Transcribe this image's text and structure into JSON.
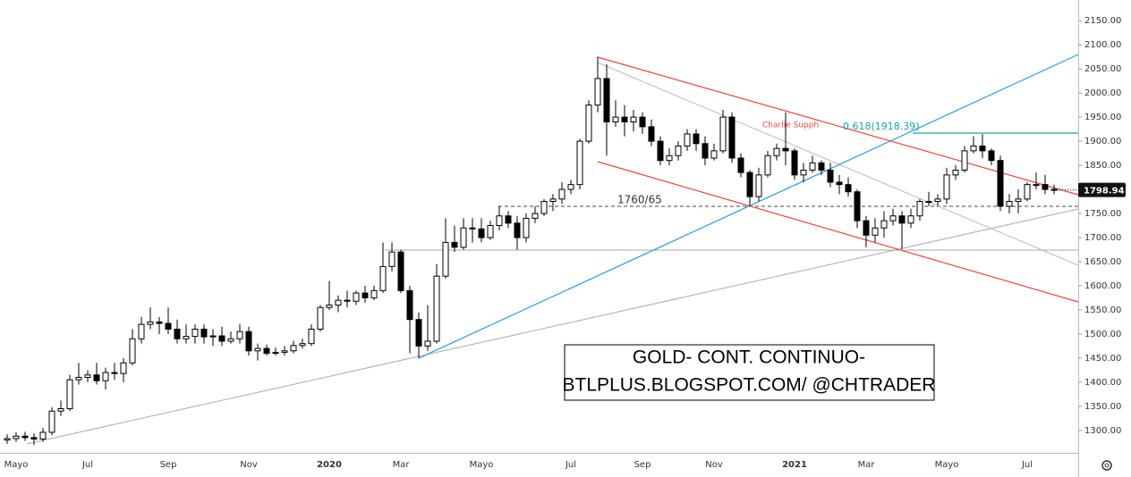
{
  "chart_data": {
    "type": "candlestick",
    "categories": [
      null,
      "Mayo",
      null,
      null,
      null,
      null,
      null,
      null,
      null,
      "Jul",
      null,
      null,
      null,
      null,
      null,
      null,
      null,
      null,
      "Sep",
      null,
      null,
      null,
      null,
      null,
      null,
      null,
      null,
      "Nov",
      null,
      null,
      null,
      null,
      null,
      null,
      null,
      null,
      "2020",
      null,
      null,
      null,
      null,
      null,
      null,
      null,
      "Mar",
      null,
      null,
      null,
      null,
      null,
      null,
      null,
      null,
      "Mayo",
      null,
      null,
      null,
      null,
      null,
      null,
      null,
      null,
      null,
      "Jul",
      null,
      null,
      null,
      null,
      null,
      null,
      null,
      "Sep",
      null,
      null,
      null,
      null,
      null,
      null,
      null,
      "Nov",
      null,
      null,
      null,
      null,
      null,
      null,
      null,
      null,
      "2021",
      null,
      null,
      null,
      null,
      null,
      null,
      null,
      "Mar",
      null,
      null,
      null,
      null,
      null,
      null,
      null,
      null,
      "Mayo",
      null,
      null,
      null,
      null,
      null,
      null,
      null,
      null,
      "Jul",
      null,
      null,
      null
    ],
    "open": [
      1280,
      1283,
      1288,
      1285,
      1282,
      1296,
      1340,
      1345,
      1405,
      1410,
      1415,
      1403,
      1420,
      1418,
      1440,
      1490,
      1520,
      1525,
      1522,
      1510,
      1490,
      1495,
      1510,
      1494,
      1496,
      1485,
      1490,
      1505,
      1465,
      1470,
      1460,
      1462,
      1465,
      1476,
      1480,
      1510,
      1555,
      1560,
      1570,
      1568,
      1585,
      1575,
      1590,
      1640,
      1670,
      1590,
      1530,
      1475,
      1485,
      1620,
      1690,
      1680,
      1720,
      1718,
      1700,
      1725,
      1745,
      1730,
      1700,
      1740,
      1750,
      1775,
      1780,
      1800,
      1810,
      1900,
      1975,
      2030,
      1940,
      1950,
      1940,
      1950,
      1930,
      1900,
      1860,
      1870,
      1890,
      1915,
      1895,
      1865,
      1880,
      1950,
      1865,
      1835,
      1785,
      1830,
      1870,
      1885,
      1880,
      1830,
      1840,
      1855,
      1840,
      1815,
      1810,
      1795,
      1735,
      1705,
      1720,
      1735,
      1745,
      1730,
      1745,
      1775,
      1775,
      1780,
      1830,
      1840,
      1880,
      1890,
      1880,
      1860,
      1765,
      1775,
      1780,
      1810,
      1810,
      1800
    ],
    "high": [
      1292,
      1296,
      1297,
      1294,
      1305,
      1348,
      1362,
      1415,
      1440,
      1425,
      1440,
      1430,
      1440,
      1450,
      1510,
      1535,
      1555,
      1535,
      1555,
      1530,
      1520,
      1520,
      1520,
      1510,
      1515,
      1505,
      1520,
      1515,
      1480,
      1478,
      1472,
      1475,
      1486,
      1490,
      1520,
      1560,
      1610,
      1580,
      1590,
      1590,
      1600,
      1600,
      1690,
      1690,
      1675,
      1600,
      1545,
      1560,
      1645,
      1740,
      1725,
      1740,
      1740,
      1740,
      1735,
      1765,
      1755,
      1745,
      1750,
      1765,
      1780,
      1790,
      1815,
      1820,
      1905,
      1985,
      2075,
      2060,
      1985,
      1975,
      1965,
      1960,
      1945,
      1910,
      1885,
      1900,
      1925,
      1925,
      1910,
      1895,
      1965,
      1960,
      1875,
      1840,
      1845,
      1880,
      1895,
      1960,
      1885,
      1855,
      1870,
      1860,
      1855,
      1830,
      1825,
      1800,
      1745,
      1740,
      1755,
      1760,
      1755,
      1760,
      1780,
      1795,
      1790,
      1845,
      1850,
      1890,
      1910,
      1915,
      1885,
      1870,
      1790,
      1800,
      1815,
      1835,
      1830,
      1810
    ],
    "low": [
      1272,
      1276,
      1278,
      1270,
      1276,
      1290,
      1330,
      1340,
      1395,
      1400,
      1395,
      1385,
      1405,
      1400,
      1435,
      1480,
      1510,
      1500,
      1500,
      1480,
      1480,
      1480,
      1480,
      1475,
      1475,
      1480,
      1480,
      1455,
      1445,
      1455,
      1455,
      1455,
      1460,
      1470,
      1475,
      1505,
      1550,
      1545,
      1555,
      1560,
      1565,
      1570,
      1585,
      1630,
      1585,
      1460,
      1450,
      1465,
      1480,
      1615,
      1670,
      1675,
      1690,
      1690,
      1695,
      1715,
      1720,
      1675,
      1690,
      1730,
      1745,
      1755,
      1770,
      1790,
      1800,
      1895,
      1960,
      1870,
      1930,
      1910,
      1920,
      1915,
      1890,
      1850,
      1850,
      1860,
      1880,
      1880,
      1850,
      1860,
      1875,
      1855,
      1825,
      1765,
      1775,
      1825,
      1860,
      1850,
      1820,
      1815,
      1835,
      1830,
      1805,
      1790,
      1785,
      1720,
      1680,
      1690,
      1700,
      1725,
      1676,
      1720,
      1735,
      1765,
      1765,
      1770,
      1820,
      1835,
      1875,
      1865,
      1850,
      1755,
      1750,
      1750,
      1775,
      1800,
      1790,
      1790
    ],
    "close": [
      1283,
      1288,
      1285,
      1282,
      1296,
      1340,
      1345,
      1405,
      1410,
      1415,
      1403,
      1420,
      1418,
      1440,
      1490,
      1520,
      1525,
      1522,
      1510,
      1490,
      1495,
      1510,
      1494,
      1496,
      1485,
      1490,
      1505,
      1465,
      1470,
      1460,
      1462,
      1465,
      1476,
      1480,
      1510,
      1555,
      1560,
      1570,
      1568,
      1585,
      1575,
      1590,
      1640,
      1670,
      1590,
      1530,
      1475,
      1485,
      1620,
      1690,
      1680,
      1720,
      1718,
      1700,
      1725,
      1745,
      1730,
      1700,
      1740,
      1750,
      1775,
      1780,
      1800,
      1810,
      1900,
      1975,
      2030,
      1940,
      1950,
      1940,
      1950,
      1930,
      1900,
      1860,
      1870,
      1890,
      1915,
      1895,
      1865,
      1880,
      1950,
      1865,
      1835,
      1785,
      1830,
      1870,
      1885,
      1880,
      1830,
      1840,
      1855,
      1840,
      1815,
      1810,
      1795,
      1735,
      1705,
      1720,
      1735,
      1745,
      1730,
      1745,
      1775,
      1775,
      1780,
      1830,
      1840,
      1880,
      1890,
      1880,
      1860,
      1765,
      1775,
      1780,
      1810,
      1810,
      1800,
      1798.94
    ],
    "up_color": "#ffffff",
    "down_color": "#000000",
    "ylim": [
      1257,
      2193
    ],
    "yticks": [
      {
        "value": 1300,
        "label": "1300.00"
      },
      {
        "value": 1350,
        "label": "1350.00"
      },
      {
        "value": 1400,
        "label": "1400.00"
      },
      {
        "value": 1450,
        "label": "1450.00"
      },
      {
        "value": 1500,
        "label": "1500.00"
      },
      {
        "value": 1550,
        "label": "1550.00"
      },
      {
        "value": 1600,
        "label": "1600.00"
      },
      {
        "value": 1650,
        "label": "1650.00"
      },
      {
        "value": 1700,
        "label": "1700.00"
      },
      {
        "value": 1750,
        "label": "1750.00"
      },
      {
        "value": 1800,
        "label": "1800.00"
      },
      {
        "value": 1850,
        "label": "1850.00"
      },
      {
        "value": 1900,
        "label": "1900.00"
      },
      {
        "value": 1950,
        "label": "1950.00"
      },
      {
        "value": 2000,
        "label": "2000.00"
      },
      {
        "value": 2050,
        "label": "2050.00"
      },
      {
        "value": 2100,
        "label": "2100.00"
      },
      {
        "value": 2150,
        "label": "2150.00"
      }
    ],
    "grid": false,
    "annotations": [
      "Charlie Supph",
      "0.618(1918.39)",
      "1760/65"
    ],
    "text_box": [
      "GOLD- CONT. CONTINUO-",
      "BTLPLUS.BLOGSPOT.COM/ @CHTRADER"
    ]
  }
}
